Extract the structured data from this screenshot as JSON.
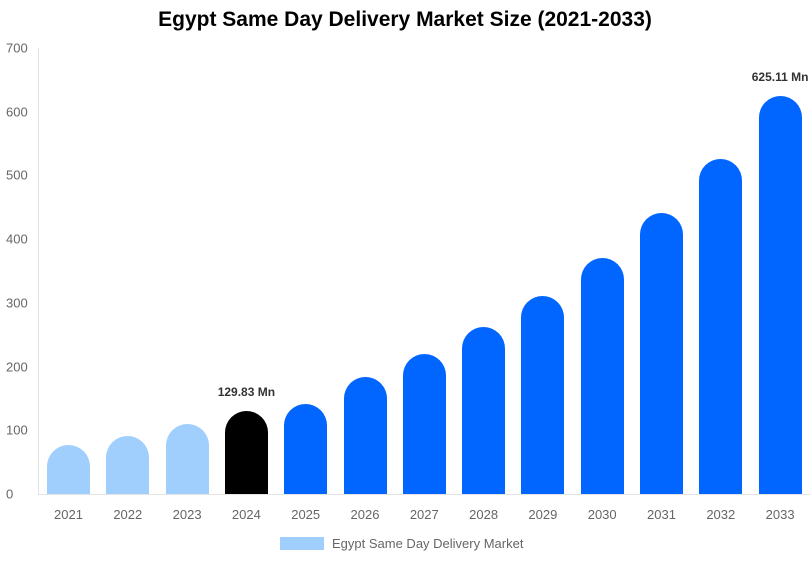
{
  "chart_data": {
    "type": "bar",
    "title": "Egypt Same Day Delivery Market Size (2021-2033)",
    "xlabel": "",
    "ylabel": "",
    "ylim": [
      0,
      700
    ],
    "yticks": [
      0,
      100,
      200,
      300,
      400,
      500,
      600,
      700
    ],
    "grid": false,
    "legend_position": "bottom",
    "categories": [
      "2021",
      "2022",
      "2023",
      "2024",
      "2025",
      "2026",
      "2027",
      "2028",
      "2029",
      "2030",
      "2031",
      "2032",
      "2033"
    ],
    "series": [
      {
        "name": "Egypt Same Day Delivery Market",
        "values": [
          77,
          91,
          110,
          129.83,
          141,
          184,
          220,
          262,
          311,
          370,
          441,
          526,
          625.11
        ]
      }
    ],
    "bar_colors": [
      "#a0cffd",
      "#a0cffd",
      "#a0cffd",
      "#000000",
      "#0066ff",
      "#0066ff",
      "#0066ff",
      "#0066ff",
      "#0066ff",
      "#0066ff",
      "#0066ff",
      "#0066ff",
      "#0066ff"
    ],
    "annotations": [
      {
        "category": "2024",
        "text": "129.83 Mn"
      },
      {
        "category": "2033",
        "text": "625.11 Mn"
      }
    ]
  },
  "title": "Egypt Same Day Delivery Market Size (2021-2033)",
  "legend": {
    "label": "Egypt Same Day Delivery Market",
    "color": "#a0cffd"
  },
  "yticks": [
    "0",
    "100",
    "200",
    "300",
    "400",
    "500",
    "600",
    "700"
  ],
  "xlabels": [
    "2021",
    "2022",
    "2023",
    "2024",
    "2025",
    "2026",
    "2027",
    "2028",
    "2029",
    "2030",
    "2031",
    "2032",
    "2033"
  ],
  "annotations": {
    "a2024": "129.83 Mn",
    "a2033": "625.11 Mn"
  }
}
